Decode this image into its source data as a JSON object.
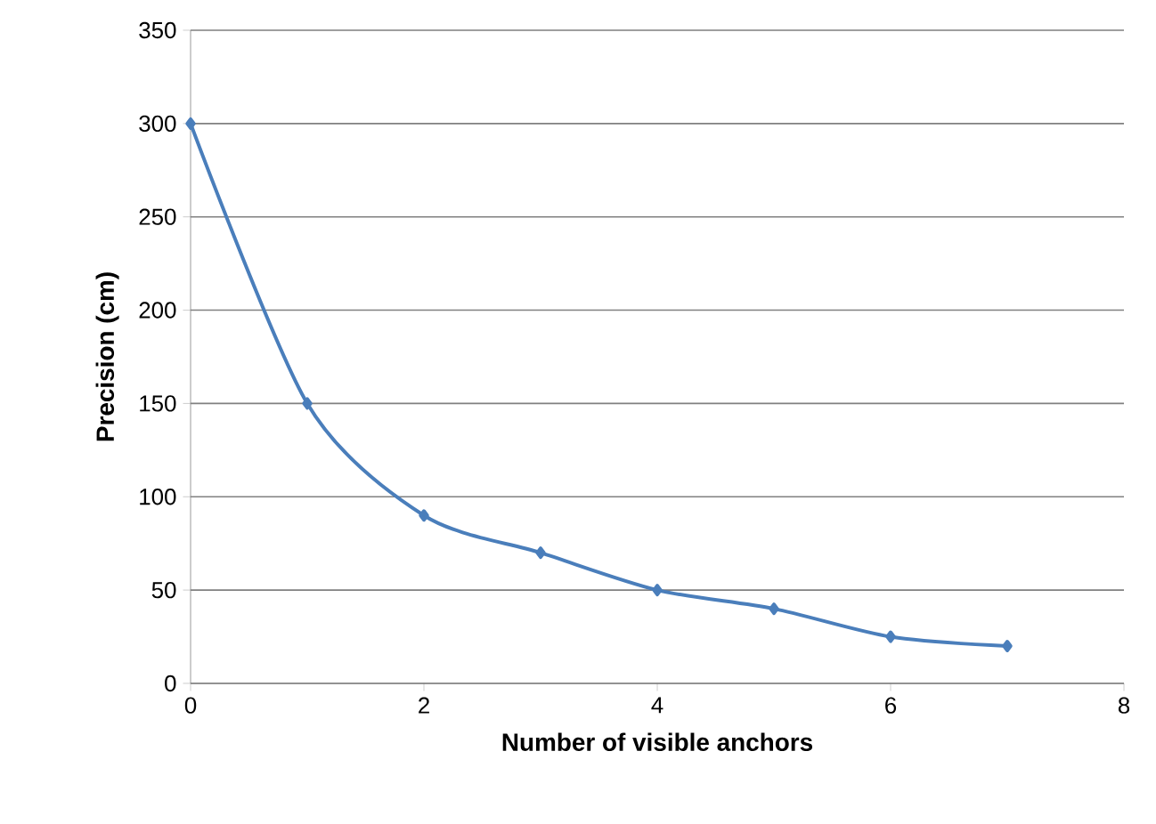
{
  "chart_data": {
    "type": "line",
    "xlabel": "Number of visible anchors",
    "ylabel": "Precision (cm)",
    "x": [
      0,
      1,
      2,
      3,
      4,
      5,
      6,
      7
    ],
    "series": [
      {
        "color": "#4a7ebb",
        "values": [
          300,
          150,
          90,
          70,
          50,
          40,
          25,
          20
        ]
      }
    ],
    "xlim": [
      0,
      8
    ],
    "ylim": [
      0,
      350
    ],
    "xticks": [
      0,
      2,
      4,
      6,
      8
    ],
    "yticks": [
      0,
      50,
      100,
      150,
      200,
      250,
      300,
      350
    ],
    "grid": "y",
    "marker": "diamond",
    "line_style": "solid"
  }
}
